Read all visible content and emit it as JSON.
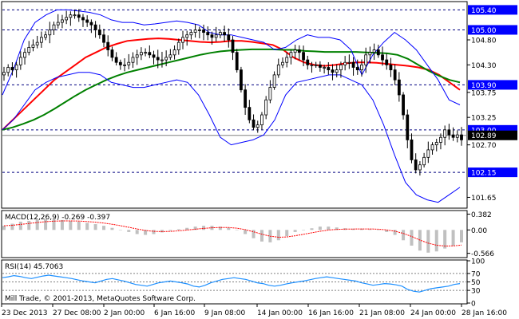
{
  "chart_data": [
    {
      "type": "candlestick",
      "panel": "price",
      "ylim": [
        101.45,
        105.55
      ],
      "ticks_right": [
        "105.40",
        "105.00",
        "104.80",
        "104.30",
        "103.90",
        "103.75",
        "103.25",
        "103.00",
        "102.89",
        "102.70",
        "102.15",
        "101.65"
      ],
      "dashed_levels": [
        105.4,
        105.0,
        103.9,
        103.0,
        102.15
      ],
      "highlight_levels": [
        {
          "value": 105.4,
          "label": "105.40",
          "color": "#0000ff"
        },
        {
          "value": 105.0,
          "label": "105.00",
          "color": "#0000ff"
        },
        {
          "value": 103.9,
          "label": "103.90",
          "color": "#0000ff"
        },
        {
          "value": 103.0,
          "label": "103.00",
          "color": "#0000ff"
        },
        {
          "value": 102.15,
          "label": "102.15",
          "color": "#0000ff"
        },
        {
          "value": 102.89,
          "label": "102.89",
          "color": "#000000"
        }
      ],
      "close_series": [
        104.15,
        104.25,
        104.2,
        104.3,
        104.45,
        104.55,
        104.65,
        104.7,
        104.75,
        104.85,
        104.9,
        105.0,
        105.1,
        105.15,
        105.2,
        105.25,
        105.3,
        105.3,
        105.25,
        105.2,
        105.15,
        105.1,
        105.0,
        104.9,
        104.75,
        104.6,
        104.45,
        104.35,
        104.3,
        104.3,
        104.35,
        104.45,
        104.5,
        104.55,
        104.55,
        104.5,
        104.45,
        104.4,
        104.4,
        104.45,
        104.5,
        104.6,
        104.75,
        104.85,
        104.9,
        104.95,
        105.0,
        105.0,
        104.95,
        104.9,
        104.85,
        104.9,
        104.95,
        104.9,
        104.8,
        104.55,
        104.2,
        103.8,
        103.45,
        103.2,
        103.05,
        103.1,
        103.3,
        103.6,
        103.85,
        104.1,
        104.3,
        104.35,
        104.45,
        104.55,
        104.6,
        104.55,
        104.4,
        104.3,
        104.3,
        104.3,
        104.25,
        104.25,
        104.2,
        104.15,
        104.2,
        104.3,
        104.35,
        104.35,
        104.25,
        104.2,
        104.3,
        104.5,
        104.55,
        104.6,
        104.5,
        104.4,
        104.3,
        104.2,
        104.0,
        103.7,
        103.3,
        102.8,
        102.4,
        102.2,
        102.3,
        102.45,
        102.6,
        102.7,
        102.75,
        102.85,
        103.0,
        102.9,
        102.85,
        102.9,
        102.8
      ],
      "overlays": [
        {
          "name": "red-ma",
          "color": "#ff0000",
          "values": [
            103.0,
            103.2,
            103.4,
            103.6,
            103.8,
            104.0,
            104.15,
            104.3,
            104.45,
            104.55,
            104.65,
            104.72,
            104.78,
            104.8,
            104.82,
            104.83,
            104.82,
            104.8,
            104.78,
            104.76,
            104.75,
            104.76,
            104.78,
            104.78,
            104.76,
            104.73,
            104.7,
            104.6,
            104.45,
            104.35,
            104.3,
            104.28,
            104.3,
            104.33,
            104.35,
            104.35,
            104.34,
            104.32,
            104.3,
            104.28,
            104.25,
            104.2,
            104.1,
            103.95,
            103.8
          ]
        },
        {
          "name": "green-ma",
          "color": "#008000",
          "values": [
            103.0,
            103.05,
            103.12,
            103.2,
            103.3,
            103.42,
            103.55,
            103.68,
            103.8,
            103.9,
            104.0,
            104.08,
            104.15,
            104.2,
            104.25,
            104.3,
            104.35,
            104.4,
            104.45,
            104.5,
            104.54,
            104.57,
            104.59,
            104.6,
            104.61,
            104.61,
            104.61,
            104.6,
            104.6,
            104.58,
            104.57,
            104.56,
            104.56,
            104.56,
            104.56,
            104.55,
            104.54,
            104.53,
            104.5,
            104.42,
            104.3,
            104.18,
            104.08,
            104.0,
            103.95
          ]
        },
        {
          "name": "bb-upper",
          "color": "#0000ff",
          "values": [
            103.7,
            104.2,
            104.8,
            105.15,
            105.3,
            105.4,
            105.4,
            105.38,
            105.35,
            105.3,
            105.2,
            105.15,
            105.15,
            105.1,
            105.12,
            105.15,
            105.18,
            105.15,
            105.1,
            104.95,
            104.9,
            104.9,
            104.85,
            104.8,
            104.75,
            104.6,
            104.65,
            104.8,
            104.9,
            104.85,
            104.85,
            104.8,
            104.6,
            104.1,
            104.5,
            104.75,
            104.95,
            104.8,
            104.6,
            104.3,
            104.0,
            103.6,
            103.5
          ]
        },
        {
          "name": "bb-lower",
          "color": "#0000ff",
          "values": [
            103.0,
            103.2,
            103.5,
            103.8,
            103.95,
            104.05,
            104.1,
            104.15,
            104.15,
            104.1,
            103.95,
            103.9,
            103.85,
            103.85,
            103.9,
            103.95,
            104.0,
            103.95,
            103.7,
            103.3,
            102.85,
            102.7,
            102.75,
            102.8,
            102.9,
            103.2,
            103.7,
            103.95,
            104.0,
            104.05,
            104.1,
            104.1,
            104.0,
            103.9,
            103.6,
            103.1,
            102.5,
            101.95,
            101.7,
            101.6,
            101.55,
            101.7,
            101.85
          ]
        }
      ]
    },
    {
      "type": "histogram",
      "panel": "macd",
      "label": "MACD(12,26,9) -0.269 -0.397",
      "ylim": [
        -0.65,
        0.45
      ],
      "ticks_right": [
        "0.382",
        "0.00",
        "-0.566"
      ],
      "values": [
        0.1,
        0.15,
        0.2,
        0.22,
        0.25,
        0.26,
        0.25,
        0.24,
        0.22,
        0.2,
        0.17,
        0.14,
        0.1,
        0.05,
        0.0,
        -0.05,
        -0.1,
        -0.12,
        -0.1,
        -0.06,
        -0.02,
        0.02,
        0.05,
        0.08,
        0.1,
        0.1,
        0.08,
        0.05,
        0.0,
        -0.1,
        -0.2,
        -0.28,
        -0.3,
        -0.25,
        -0.15,
        -0.05,
        0.0,
        0.04,
        0.08,
        0.08,
        0.06,
        0.04,
        0.03,
        0.03,
        0.02,
        0.0,
        -0.05,
        -0.12,
        -0.25,
        -0.38,
        -0.5,
        -0.55,
        -0.52,
        -0.45,
        -0.38,
        -0.3
      ]
    },
    {
      "type": "line",
      "panel": "rsi",
      "label": "RSI(14) 45.7063",
      "ylim": [
        0,
        100
      ],
      "ticks_right": [
        "100",
        "70",
        "50",
        "30",
        "0"
      ],
      "levels": [
        70,
        50,
        30
      ],
      "values": [
        60,
        62,
        65,
        63,
        60,
        58,
        61,
        64,
        66,
        64,
        62,
        60,
        58,
        55,
        52,
        50,
        48,
        52,
        56,
        58,
        55,
        52,
        48,
        44,
        42,
        40,
        44,
        48,
        50,
        52,
        50,
        48,
        45,
        40,
        38,
        42,
        48,
        52,
        56,
        58,
        60,
        58,
        56,
        52,
        48,
        46,
        42,
        40,
        42,
        45,
        48,
        50,
        52,
        55,
        58,
        60,
        62,
        60,
        58,
        56,
        54,
        52,
        48,
        45,
        42,
        44,
        46,
        45,
        43,
        40,
        32,
        28,
        26,
        30,
        34,
        36,
        38,
        40,
        44,
        46
      ]
    }
  ],
  "x_labels": [
    "23 Dec 2013",
    "27 Dec 08:00",
    "2 Jan 00:00",
    "6 Jan 16:00",
    "9 Jan 08:00",
    "14 Jan 00:00",
    "16 Jan 16:00",
    "21 Jan 08:00",
    "24 Jan 00:00",
    "28 Jan 16:00"
  ],
  "footer": "Mill Trade, © 2001-2013, MetaQuotes Software Corp."
}
